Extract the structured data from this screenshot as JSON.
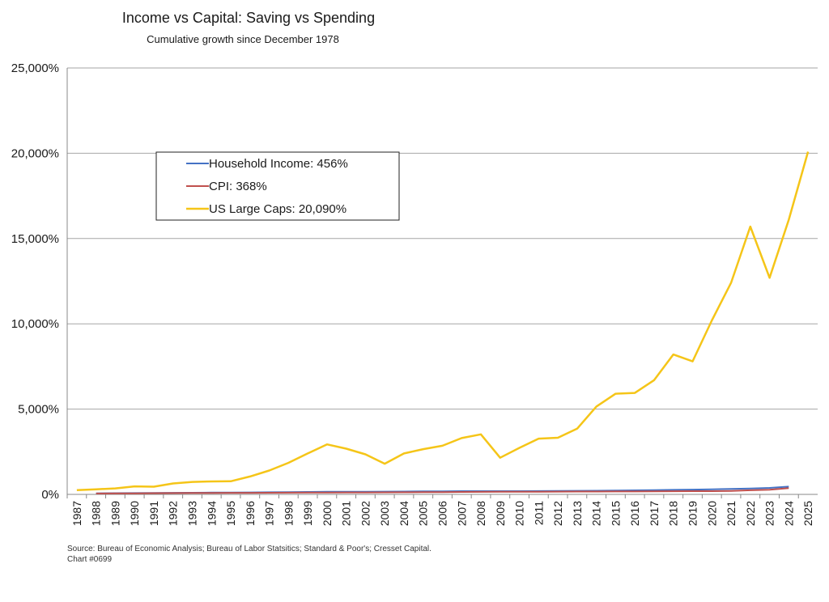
{
  "chart_data": {
    "type": "line",
    "title": "Income vs Capital: Saving vs Spending",
    "subtitle": "Cumulative growth since December 1978",
    "xlabel": "",
    "ylabel": "",
    "ylim": [
      0,
      25000
    ],
    "yticks": [
      0,
      5000,
      10000,
      15000,
      20000,
      25000
    ],
    "ytick_labels": [
      "0%",
      "5,000%",
      "10,000%",
      "15,000%",
      "20,000%",
      "25,000%"
    ],
    "grid": true,
    "legend_position": "upper-left",
    "x": [
      "1987",
      "1988",
      "1989",
      "1990",
      "1991",
      "1992",
      "1993",
      "1994",
      "1995",
      "1996",
      "1997",
      "1998",
      "1999",
      "2000",
      "2001",
      "2002",
      "2003",
      "2004",
      "2005",
      "2006",
      "2007",
      "2008",
      "2009",
      "2010",
      "2011",
      "2012",
      "2013",
      "2014",
      "2015",
      "2016",
      "2017",
      "2018",
      "2019",
      "2020",
      "2021",
      "2022",
      "2023",
      "2024",
      "2025"
    ],
    "series": [
      {
        "name": "Household Income: 456%",
        "color": "#4472c4",
        "values": [
          null,
          60,
          70,
          78,
          85,
          90,
          96,
          102,
          108,
          115,
          122,
          130,
          140,
          150,
          155,
          158,
          162,
          168,
          175,
          180,
          188,
          190,
          188,
          190,
          195,
          200,
          210,
          215,
          225,
          235,
          250,
          265,
          280,
          300,
          320,
          340,
          380,
          456,
          null
        ]
      },
      {
        "name": "CPI: 368%",
        "color": "#c0504d",
        "values": [
          null,
          50,
          55,
          62,
          70,
          75,
          80,
          84,
          88,
          92,
          96,
          98,
          102,
          108,
          112,
          115,
          120,
          125,
          130,
          135,
          140,
          148,
          150,
          152,
          158,
          162,
          165,
          168,
          170,
          172,
          178,
          185,
          190,
          192,
          205,
          240,
          270,
          368,
          null
        ]
      },
      {
        "name": "US Large Caps: 20,090%",
        "color": "#f5c518",
        "values": [
          250,
          300,
          350,
          470,
          450,
          640,
          730,
          760,
          770,
          1050,
          1400,
          1850,
          2400,
          2930,
          2680,
          2350,
          1800,
          2400,
          2650,
          2850,
          3300,
          3520,
          2150,
          2730,
          3270,
          3320,
          3850,
          5150,
          5900,
          5950,
          6700,
          8200,
          7800,
          10200,
          12400,
          15700,
          12700,
          16100,
          20090
        ]
      }
    ],
    "source": "Source: Bureau of Economic Analysis; Bureau of Labor Statsitics; Standard & Poor's; Cresset Capital.",
    "chart_id": "Chart #0699"
  }
}
